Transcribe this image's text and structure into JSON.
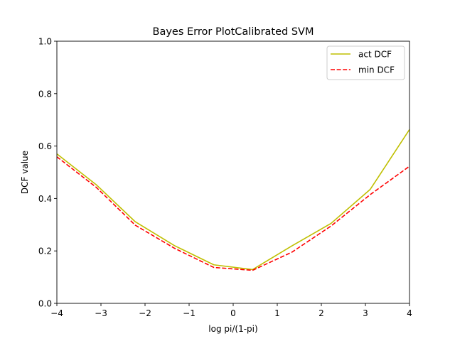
{
  "chart_data": {
    "type": "line",
    "title": "Bayes Error PlotCalibrated SVM",
    "xlabel": "log pi/(1-pi)",
    "ylabel": "DCF value",
    "xlim": [
      -4,
      4
    ],
    "ylim": [
      0,
      1.0
    ],
    "xticks": [
      -4,
      -3,
      -2,
      -1,
      0,
      1,
      2,
      3,
      4
    ],
    "xtick_labels": [
      "−4",
      "−3",
      "−2",
      "−1",
      "0",
      "1",
      "2",
      "3",
      "4"
    ],
    "yticks": [
      0.0,
      0.2,
      0.4,
      0.6,
      0.8,
      1.0
    ],
    "ytick_labels": [
      "0.0",
      "0.2",
      "0.4",
      "0.6",
      "0.8",
      "1.0"
    ],
    "grid": false,
    "legend_position": "upper right",
    "series": [
      {
        "name": "act DCF",
        "color": "#bfbf00",
        "style": "solid",
        "x": [
          -4.0,
          -3.11,
          -2.22,
          -1.33,
          -0.44,
          0.44,
          1.33,
          2.22,
          3.11,
          4.0
        ],
        "y": [
          0.57,
          0.453,
          0.311,
          0.22,
          0.147,
          0.129,
          0.219,
          0.305,
          0.435,
          0.663
        ]
      },
      {
        "name": "min DCF",
        "color": "#ff0000",
        "style": "dashed",
        "x": [
          -4.0,
          -3.11,
          -2.22,
          -1.33,
          -0.44,
          0.44,
          1.33,
          2.22,
          3.11,
          4.0
        ],
        "y": [
          0.559,
          0.443,
          0.298,
          0.21,
          0.137,
          0.126,
          0.195,
          0.295,
          0.415,
          0.523
        ]
      }
    ]
  }
}
